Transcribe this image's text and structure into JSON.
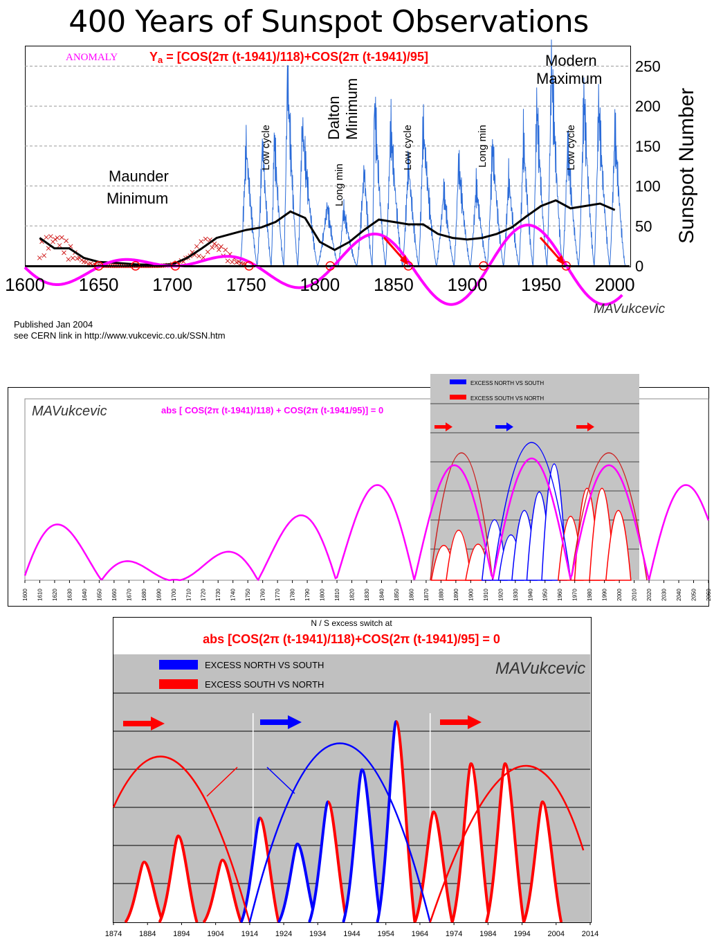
{
  "chart_data": [
    {
      "type": "line",
      "title": "400 Years of Sunspot Observations",
      "ylabel": "Sunspot Number",
      "xlim": [
        1600,
        2010
      ],
      "ylim": [
        0,
        260
      ],
      "x_ticks": [
        1600,
        1650,
        1700,
        1750,
        1800,
        1850,
        1900,
        1950,
        2000
      ],
      "y_ticks": [
        0,
        50,
        100,
        150,
        200,
        250
      ],
      "legend_anomaly": "ANOMALY",
      "formula_prefix": "Y",
      "formula_sub": "a",
      "formula_body": " = [COS(2π (t-1941)/118)+COS(2π (t-1941)/95]",
      "annotations": {
        "maunder": [
          "Maunder",
          "Minimum"
        ],
        "dalton": [
          "Dalton",
          "Minimum"
        ],
        "modern": [
          "Modern",
          "Maximum"
        ],
        "low_cycle": "Low cycle",
        "long_min": "Long min"
      },
      "cycle_maxima": [
        {
          "year": 1750,
          "value": 150
        },
        {
          "year": 1761,
          "value": 154
        },
        {
          "year": 1769,
          "value": 160
        },
        {
          "year": 1778,
          "value": 238
        },
        {
          "year": 1788,
          "value": 175
        },
        {
          "year": 1805,
          "value": 75
        },
        {
          "year": 1816,
          "value": 70
        },
        {
          "year": 1830,
          "value": 120
        },
        {
          "year": 1837,
          "value": 205
        },
        {
          "year": 1848,
          "value": 175
        },
        {
          "year": 1860,
          "value": 130
        },
        {
          "year": 1870,
          "value": 175
        },
        {
          "year": 1884,
          "value": 95
        },
        {
          "year": 1894,
          "value": 130
        },
        {
          "year": 1906,
          "value": 100
        },
        {
          "year": 1917,
          "value": 150
        },
        {
          "year": 1928,
          "value": 110
        },
        {
          "year": 1938,
          "value": 160
        },
        {
          "year": 1947,
          "value": 200
        },
        {
          "year": 1957,
          "value": 253
        },
        {
          "year": 1968,
          "value": 150
        },
        {
          "year": 1979,
          "value": 210
        },
        {
          "year": 1989,
          "value": 200
        },
        {
          "year": 2000,
          "value": 170
        }
      ],
      "smoothed_mean": [
        [
          1610,
          35
        ],
        [
          1620,
          22
        ],
        [
          1630,
          22
        ],
        [
          1640,
          10
        ],
        [
          1650,
          5
        ],
        [
          1660,
          4
        ],
        [
          1675,
          2
        ],
        [
          1690,
          1
        ],
        [
          1700,
          2
        ],
        [
          1710,
          10
        ],
        [
          1720,
          22
        ],
        [
          1730,
          35
        ],
        [
          1740,
          40
        ],
        [
          1750,
          45
        ],
        [
          1760,
          48
        ],
        [
          1770,
          55
        ],
        [
          1780,
          68
        ],
        [
          1790,
          60
        ],
        [
          1800,
          30
        ],
        [
          1810,
          20
        ],
        [
          1820,
          30
        ],
        [
          1830,
          45
        ],
        [
          1840,
          58
        ],
        [
          1850,
          55
        ],
        [
          1860,
          52
        ],
        [
          1870,
          52
        ],
        [
          1880,
          40
        ],
        [
          1890,
          35
        ],
        [
          1900,
          33
        ],
        [
          1910,
          35
        ],
        [
          1920,
          40
        ],
        [
          1930,
          48
        ],
        [
          1940,
          62
        ],
        [
          1950,
          75
        ],
        [
          1960,
          82
        ],
        [
          1970,
          72
        ],
        [
          1980,
          75
        ],
        [
          1990,
          78
        ],
        [
          2000,
          70
        ]
      ],
      "anomaly_zero_crossings": [
        1650,
        1675,
        1702,
        1752,
        1807,
        1860,
        1911,
        1967
      ]
    },
    {
      "type": "line",
      "title": "abs [ COS(2π (t-1941)/118) + COS(2π (t-1941/95)] = 0",
      "xlim": [
        1600,
        2060
      ],
      "x_ticks": [
        1600,
        1610,
        1620,
        1630,
        1640,
        1650,
        1660,
        1670,
        1680,
        1690,
        1700,
        1710,
        1720,
        1730,
        1740,
        1750,
        1760,
        1770,
        1780,
        1790,
        1800,
        1810,
        1820,
        1830,
        1840,
        1850,
        1860,
        1870,
        1880,
        1890,
        1900,
        1910,
        1920,
        1930,
        1940,
        1950,
        1960,
        1970,
        1980,
        1990,
        2000,
        2010,
        2020,
        2030,
        2040,
        2050,
        2060
      ],
      "legend": [
        "EXCESS NORTH VS SOUTH",
        "EXCESS SOUTH VS NORTH"
      ]
    },
    {
      "type": "bar",
      "title": "N / S excess switch at",
      "subtitle": "abs [COS(2π (t-1941)/118)+COS(2π (t-1941)/95] = 0",
      "xlim": [
        1874,
        2014
      ],
      "x_ticks": [
        1874,
        1884,
        1894,
        1904,
        1914,
        1924,
        1934,
        1944,
        1954,
        1964,
        1974,
        1984,
        1994,
        2004,
        2014
      ],
      "legend": [
        {
          "name": "EXCESS NORTH VS SOUTH",
          "color": "#0000ff"
        },
        {
          "name": "EXCESS SOUTH VS NORTH",
          "color": "#ff0000"
        }
      ],
      "switch_years": [
        1915,
        1967
      ],
      "cycles": [
        {
          "peak_year": 1883,
          "value": 60
        },
        {
          "peak_year": 1893,
          "value": 86
        },
        {
          "peak_year": 1906,
          "value": 62
        },
        {
          "peak_year": 1917,
          "value": 104
        },
        {
          "peak_year": 1928,
          "value": 78
        },
        {
          "peak_year": 1937,
          "value": 120
        },
        {
          "peak_year": 1947,
          "value": 152
        },
        {
          "peak_year": 1957,
          "value": 200
        },
        {
          "peak_year": 1968,
          "value": 110
        },
        {
          "peak_year": 1979,
          "value": 158
        },
        {
          "peak_year": 1989,
          "value": 158
        },
        {
          "peak_year": 2000,
          "value": 120
        }
      ]
    }
  ],
  "signature": "MAVukcevic",
  "published": "Published Jan 2004",
  "cern_link": "see CERN link in http://www.vukcevic.co.uk/SSN.htm",
  "colors": {
    "anomaly": "#ff00ff",
    "formula": "#ff0000",
    "mean": "#000000",
    "sunspots": "#1f5fd6",
    "north": "#0000ff",
    "south": "#ff0000",
    "grey": "#c0c0c0"
  }
}
